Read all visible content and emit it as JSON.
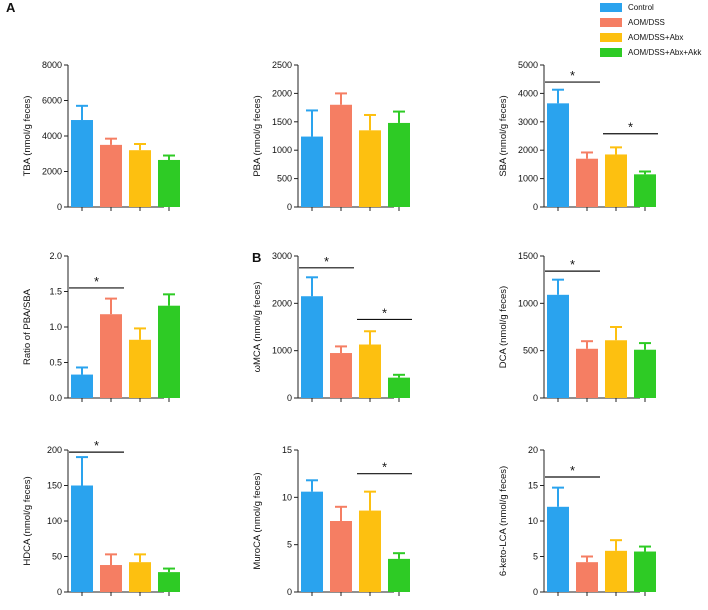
{
  "panel_labels": {
    "a": "A",
    "b": "B"
  },
  "legend": [
    {
      "label": "Control",
      "color": "#2aa3ee"
    },
    {
      "label": "AOM/DSS",
      "color": "#f57e63"
    },
    {
      "label": "AOM/DSS+Abx",
      "color": "#fdc010"
    },
    {
      "label": "AOM/DSS+Abx+Akk",
      "color": "#2ecb25"
    }
  ],
  "chart_data": [
    {
      "type": "bar",
      "ylabel": "TBA (nmol/g feces)",
      "ylim": [
        0,
        8000
      ],
      "yticks": [
        0,
        2000,
        4000,
        6000,
        8000
      ],
      "categories": [
        "Control",
        "AOM/DSS",
        "AOM/DSS+Abx",
        "AOM/DSS+Abx+Akk"
      ],
      "values": [
        4900,
        3500,
        3200,
        2650
      ],
      "errors": [
        800,
        350,
        350,
        250
      ],
      "significance": []
    },
    {
      "type": "bar",
      "ylabel": "PBA (nmol/g feces)",
      "ylim": [
        0,
        2500
      ],
      "yticks": [
        0,
        500,
        1000,
        1500,
        2000,
        2500
      ],
      "categories": [
        "Control",
        "AOM/DSS",
        "AOM/DSS+Abx",
        "AOM/DSS+Abx+Akk"
      ],
      "values": [
        1240,
        1800,
        1350,
        1480
      ],
      "errors": [
        460,
        200,
        270,
        200
      ],
      "significance": []
    },
    {
      "type": "bar",
      "ylabel": "SBA (nmol/g feces)",
      "ylim": [
        0,
        5000
      ],
      "yticks": [
        0,
        1000,
        2000,
        3000,
        4000,
        5000
      ],
      "categories": [
        "Control",
        "AOM/DSS",
        "AOM/DSS+Abx",
        "AOM/DSS+Abx+Akk"
      ],
      "values": [
        3650,
        1700,
        1850,
        1150
      ],
      "errors": [
        480,
        220,
        250,
        100
      ],
      "significance": [
        {
          "from": 0,
          "to": 1,
          "y": 4400,
          "label": "*"
        },
        {
          "from": 2,
          "to": 3,
          "y": 2580,
          "label": "*"
        }
      ]
    },
    {
      "type": "bar",
      "ylabel": "Ratio of PBA/SBA",
      "ylim": [
        0,
        2.0
      ],
      "yticks": [
        "0.0",
        "0.5",
        "1.0",
        "1.5",
        "2.0"
      ],
      "categories": [
        "Control",
        "AOM/DSS",
        "AOM/DSS+Abx",
        "AOM/DSS+Abx+Akk"
      ],
      "values": [
        0.33,
        1.18,
        0.82,
        1.3
      ],
      "errors": [
        0.1,
        0.22,
        0.16,
        0.16
      ],
      "significance": [
        {
          "from": 0,
          "to": 1,
          "y": 1.55,
          "label": "*"
        }
      ]
    },
    {
      "type": "bar",
      "ylabel": "ωMCA (nmol/g feces)",
      "ylim": [
        0,
        3000
      ],
      "yticks": [
        0,
        1000,
        2000,
        3000
      ],
      "categories": [
        "Control",
        "AOM/DSS",
        "AOM/DSS+Abx",
        "AOM/DSS+Abx+Akk"
      ],
      "values": [
        2150,
        950,
        1130,
        430
      ],
      "errors": [
        400,
        140,
        280,
        60
      ],
      "significance": [
        {
          "from": 0,
          "to": 1,
          "y": 2750,
          "label": "*"
        },
        {
          "from": 2,
          "to": 3,
          "y": 1660,
          "label": "*"
        }
      ]
    },
    {
      "type": "bar",
      "ylabel": "DCA (nmol/g feces)",
      "ylim": [
        0,
        1500
      ],
      "yticks": [
        0,
        500,
        1000,
        1500
      ],
      "categories": [
        "Control",
        "AOM/DSS",
        "AOM/DSS+Abx",
        "AOM/DSS+Abx+Akk"
      ],
      "values": [
        1090,
        520,
        610,
        510
      ],
      "errors": [
        160,
        80,
        140,
        70
      ],
      "significance": [
        {
          "from": 0,
          "to": 1,
          "y": 1340,
          "label": "*"
        }
      ]
    },
    {
      "type": "bar",
      "ylabel": "HDCA (nmol/g feces)",
      "ylim": [
        0,
        200
      ],
      "yticks": [
        0,
        50,
        100,
        150,
        200
      ],
      "categories": [
        "Control",
        "AOM/DSS",
        "AOM/DSS+Abx",
        "AOM/DSS+Abx+Akk"
      ],
      "values": [
        150,
        38,
        42,
        28
      ],
      "errors": [
        40,
        15,
        11,
        5
      ],
      "significance": [
        {
          "from": 0,
          "to": 1,
          "y": 197,
          "label": "*"
        }
      ]
    },
    {
      "type": "bar",
      "ylabel": "MuroCA (nmol/g feces)",
      "ylim": [
        0,
        15
      ],
      "yticks": [
        0,
        5,
        10,
        15
      ],
      "categories": [
        "Control",
        "AOM/DSS",
        "AOM/DSS+Abx",
        "AOM/DSS+Abx+Akk"
      ],
      "values": [
        10.6,
        7.5,
        8.6,
        3.5
      ],
      "errors": [
        1.2,
        1.5,
        2.0,
        0.6
      ],
      "significance": [
        {
          "from": 2,
          "to": 3,
          "y": 12.5,
          "label": "*"
        }
      ]
    },
    {
      "type": "bar",
      "ylabel": "6-keto-LCA (nmol/g feces)",
      "ylim": [
        0,
        20
      ],
      "yticks": [
        0,
        5,
        10,
        15,
        20
      ],
      "categories": [
        "Control",
        "AOM/DSS",
        "AOM/DSS+Abx",
        "AOM/DSS+Abx+Akk"
      ],
      "values": [
        12.0,
        4.2,
        5.8,
        5.7
      ],
      "errors": [
        2.7,
        0.8,
        1.5,
        0.7
      ],
      "significance": [
        {
          "from": 0,
          "to": 1,
          "y": 16.2,
          "label": "*"
        }
      ]
    }
  ]
}
